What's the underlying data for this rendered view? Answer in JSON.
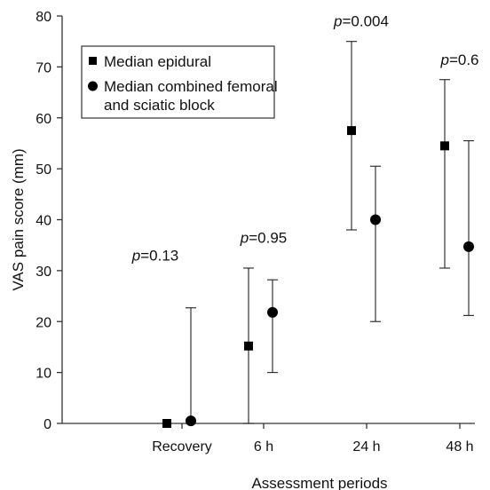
{
  "chart_data": {
    "type": "scatter",
    "xlabel": "Assessment periods",
    "ylabel": "VAS pain score (mm)",
    "ylim": [
      0,
      80
    ],
    "yticks": [
      0,
      10,
      20,
      30,
      40,
      50,
      60,
      70,
      80
    ],
    "categories": [
      "Recovery",
      "6 h",
      "24 h",
      "48 h"
    ],
    "legend": {
      "placement": "top-left"
    },
    "series": [
      {
        "name": "Median epidural",
        "marker": "square",
        "values": [
          0,
          15.2,
          57.5,
          54.5
        ],
        "error_low": [
          0,
          0,
          38,
          30.5
        ],
        "error_high": [
          0,
          30.5,
          75,
          67.5
        ]
      },
      {
        "name": "Median combined femoral and sciatic block",
        "marker": "circle",
        "values": [
          0.5,
          21.8,
          40,
          34.7
        ],
        "error_low": [
          0,
          10,
          20,
          21.2
        ],
        "error_high": [
          22.7,
          28.2,
          50.5,
          55.5
        ]
      }
    ],
    "annotations": [
      {
        "category": "Recovery",
        "italic": "p",
        "rest": "=0.13",
        "y": 33
      },
      {
        "category": "6 h",
        "italic": "p",
        "rest": "=0.95",
        "y": 36.5
      },
      {
        "category": "24 h",
        "italic": "p",
        "rest": "=0.004",
        "y": 79
      },
      {
        "category": "48 h",
        "italic": "p",
        "rest": "=0.6",
        "y": 71.5
      }
    ],
    "colors": {
      "marks": "#000000",
      "axis": "#333333"
    }
  }
}
